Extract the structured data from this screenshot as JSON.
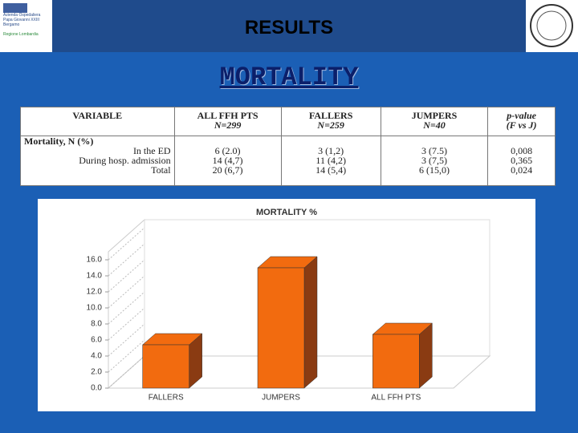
{
  "header": {
    "title": "RESULTS",
    "subtitle": "MORTALITY",
    "logo_lines": [
      "Azienda Ospedaliera",
      "Papa Giovanni XXIII",
      "Bergamo",
      "Regione Lombardia"
    ]
  },
  "table": {
    "columns": [
      {
        "title": "VARIABLE"
      },
      {
        "title": "ALL FFH PTS",
        "subtitle": "N=299"
      },
      {
        "title": "FALLERS",
        "subtitle": "N=259"
      },
      {
        "title": "JUMPERS",
        "subtitle": "N=40"
      },
      {
        "title": "p-value",
        "subtitle": "(F vs J)"
      }
    ],
    "group": "Mortality, N (%)",
    "rows": [
      {
        "label": "In the ED",
        "cells": [
          "6 (2.0)",
          "3 (1,2)",
          "3 (7.5)",
          "0,008"
        ]
      },
      {
        "label": "During hosp. admission",
        "cells": [
          "14 (4,7)",
          "11 (4,2)",
          "3 (7,5)",
          "0,365"
        ]
      },
      {
        "label": "Total",
        "cells": [
          "20 (6,7)",
          "14 (5,4)",
          "6 (15,0)",
          "0,024"
        ]
      }
    ]
  },
  "chart_data": {
    "type": "bar3d",
    "title": "MORTALITY %",
    "categories": [
      "FALLERS",
      "JUMPERS",
      "ALL FFH PTS"
    ],
    "values": [
      5.4,
      15.0,
      6.7
    ],
    "color": "#f26b0f",
    "side_color": "#8a3b12",
    "ylim": [
      0,
      16
    ],
    "yticks": [
      {
        "value": 0,
        "label": "0.0"
      },
      {
        "value": 2,
        "label": "2.0"
      },
      {
        "value": 4,
        "label": "4.0"
      },
      {
        "value": 6,
        "label": "6.0"
      },
      {
        "value": 8,
        "label": "8.0"
      },
      {
        "value": 10,
        "label": "10.0"
      },
      {
        "value": 12,
        "label": "12.0"
      },
      {
        "value": 14,
        "label": "14.0"
      },
      {
        "value": 16,
        "label": "16.0"
      }
    ],
    "grid": true
  }
}
